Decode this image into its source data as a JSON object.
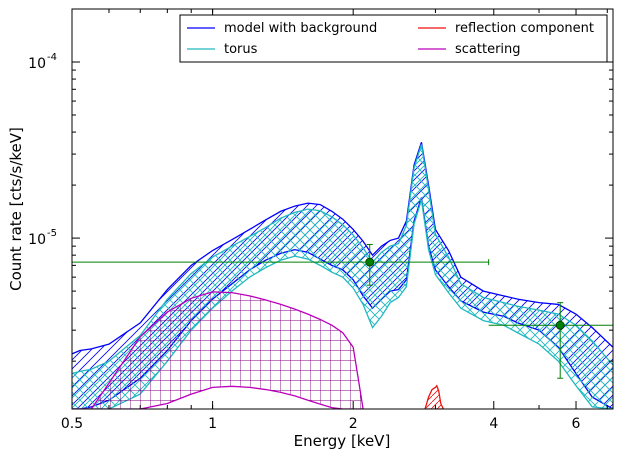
{
  "chart_data": {
    "type": "line",
    "xlabel": "Energy [keV]",
    "ylabel": "Count rate [cts/s/keV]",
    "x_scale": "log",
    "y_scale": "log",
    "xlim": [
      0.5,
      7.2
    ],
    "ylim": [
      1.07e-06,
      0.0002
    ],
    "x_ticks": [
      {
        "value": 0.5,
        "label": "0.5"
      },
      {
        "value": 1,
        "label": "1"
      },
      {
        "value": 2,
        "label": "2"
      },
      {
        "value": 4,
        "label": "4"
      },
      {
        "value": 6,
        "label": "6"
      }
    ],
    "y_ticks": [
      {
        "value": 1e-05,
        "label": "10",
        "exp": "-5"
      },
      {
        "value": 0.0001,
        "label": "10",
        "exp": "-4"
      }
    ],
    "legend_position": "top-right",
    "colors": {
      "model": "#0000ff",
      "torus": "#20b8c0",
      "reflection": "#ee1111",
      "scattering": "#bb00bb",
      "data": "#008000",
      "scattering_hatch": "#800080"
    },
    "series": [
      {
        "name": "model with background",
        "color": "#0000ff",
        "x": [
          0.5,
          0.52,
          0.55,
          0.6,
          0.7,
          0.8,
          0.9,
          1.0,
          1.1,
          1.2,
          1.3,
          1.4,
          1.5,
          1.6,
          1.7,
          1.8,
          1.9,
          2.0,
          2.1,
          2.2,
          2.3,
          2.4,
          2.5,
          2.6,
          2.7,
          2.8,
          2.9,
          3.0,
          3.2,
          3.4,
          3.8,
          4.2,
          4.5,
          5.0,
          5.5,
          6.0,
          6.5,
          7.2
        ],
        "lower": [
          1.07e-06,
          1.07e-06,
          1.1e-06,
          1.2e-06,
          1.6e-06,
          2.3e-06,
          3.4e-06,
          4.5e-06,
          5.5e-06,
          6.6e-06,
          7.5e-06,
          8.2e-06,
          8.6e-06,
          8.3e-06,
          7.6e-06,
          7e-06,
          6.6e-06,
          5.8e-06,
          4.7e-06,
          4e-06,
          4.5e-06,
          5e-06,
          5.1e-06,
          5.8e-06,
          1.25e-05,
          1.7e-05,
          9e-06,
          6.6e-06,
          5.3e-06,
          4.4e-06,
          3.8e-06,
          3.6e-06,
          3.3e-06,
          3e-06,
          2.4e-06,
          1.7e-06,
          1.25e-06,
          1.07e-06
        ],
        "upper": [
          2.2e-06,
          2.3e-06,
          2.35e-06,
          2.5e-06,
          3.3e-06,
          5.1e-06,
          7e-06,
          8.5e-06,
          9.8e-06,
          1.12e-05,
          1.27e-05,
          1.42e-05,
          1.52e-05,
          1.58e-05,
          1.55e-05,
          1.42e-05,
          1.28e-05,
          1.12e-05,
          9.6e-06,
          8e-06,
          9e-06,
          9.7e-06,
          1e-05,
          1.25e-05,
          2.6e-05,
          3.5e-05,
          2e-05,
          1.12e-05,
          8.5e-06,
          6e-06,
          5e-06,
          4.7e-06,
          4.5e-06,
          4.3e-06,
          4.2e-06,
          3.7e-06,
          3.1e-06,
          2.4e-06
        ]
      },
      {
        "name": "torus",
        "color": "#20b8c0",
        "x": [
          0.5,
          0.52,
          0.55,
          0.6,
          0.7,
          0.8,
          0.9,
          1.0,
          1.1,
          1.2,
          1.3,
          1.4,
          1.5,
          1.6,
          1.7,
          1.8,
          1.9,
          2.0,
          2.1,
          2.2,
          2.3,
          2.4,
          2.5,
          2.6,
          2.7,
          2.8,
          2.9,
          3.0,
          3.2,
          3.4,
          3.8,
          4.2,
          4.5,
          5.0,
          5.5,
          6.0,
          6.5,
          7.2
        ],
        "lower": [
          1.07e-06,
          1.07e-06,
          1.07e-06,
          1.07e-06,
          1.3e-06,
          2e-06,
          3e-06,
          4e-06,
          5e-06,
          6e-06,
          6.8e-06,
          7.5e-06,
          7.9e-06,
          7.6e-06,
          7e-06,
          6.4e-06,
          6e-06,
          5.2e-06,
          4.2e-06,
          3.1e-06,
          3.6e-06,
          4.3e-06,
          4.6e-06,
          5.3e-06,
          1.2e-05,
          1.65e-05,
          8.6e-06,
          6.2e-06,
          4.9e-06,
          4e-06,
          3.4e-06,
          3.2e-06,
          2.9e-06,
          2.5e-06,
          2e-06,
          1.45e-06,
          1.1e-06,
          1.07e-06
        ],
        "upper": [
          1.7e-06,
          1.75e-06,
          1.8e-06,
          2e-06,
          2.8e-06,
          4.5e-06,
          6.3e-06,
          7.8e-06,
          9e-06,
          1.02e-05,
          1.15e-05,
          1.3e-05,
          1.4e-05,
          1.46e-05,
          1.43e-05,
          1.32e-05,
          1.19e-05,
          1.04e-05,
          8.8e-06,
          7.3e-06,
          8.3e-06,
          9e-06,
          9.3e-06,
          1.18e-05,
          2.5e-05,
          3.4e-05,
          1.9e-05,
          1.05e-05,
          7.8e-06,
          5.5e-06,
          4.6e-06,
          4.3e-06,
          4.1e-06,
          3.9e-06,
          3.7e-06,
          3.2e-06,
          2.6e-06,
          1.9e-06
        ]
      },
      {
        "name": "reflection component",
        "color": "#ee1111",
        "x": [
          2.85,
          2.9,
          2.95,
          3.0,
          3.02,
          3.05,
          3.08,
          3.12
        ],
        "lower": [
          1.07e-06,
          1.07e-06,
          1.07e-06,
          1.07e-06,
          1.07e-06,
          1.07e-06,
          1.07e-06,
          1.07e-06
        ],
        "upper": [
          1.07e-06,
          1.25e-06,
          1.38e-06,
          1.42e-06,
          1.45e-06,
          1.35e-06,
          1.15e-06,
          1.07e-06
        ]
      },
      {
        "name": "scattering",
        "color": "#bb00bb",
        "x": [
          0.5,
          0.55,
          0.6,
          0.7,
          0.8,
          0.9,
          1.0,
          1.1,
          1.2,
          1.3,
          1.4,
          1.5,
          1.6,
          1.7,
          1.8,
          1.9,
          2.0,
          2.05,
          2.1
        ],
        "lower": [
          1.07e-06,
          1.07e-06,
          1.07e-06,
          1.07e-06,
          1.15e-06,
          1.3e-06,
          1.42e-06,
          1.44e-06,
          1.42e-06,
          1.38e-06,
          1.33e-06,
          1.27e-06,
          1.2e-06,
          1.14e-06,
          1.09e-06,
          1.07e-06,
          1.07e-06,
          1.07e-06,
          1.07e-06
        ],
        "upper": [
          1.07e-06,
          1.07e-06,
          1.5e-06,
          2.75e-06,
          3.8e-06,
          4.55e-06,
          4.95e-06,
          4.9e-06,
          4.7e-06,
          4.45e-06,
          4.2e-06,
          3.95e-06,
          3.7e-06,
          3.45e-06,
          3.2e-06,
          2.9e-06,
          2.4e-06,
          1.6e-06,
          1.07e-06
        ]
      }
    ],
    "data_points": [
      {
        "x": 2.17,
        "y": 7.3e-06,
        "xerr": [
          0.5,
          3.9
        ],
        "yerr": [
          5.4e-06,
          9.2e-06
        ]
      },
      {
        "x": 5.55,
        "y": 3.2e-06,
        "xerr": [
          3.9,
          7.2
        ],
        "yerr": [
          1.6e-06,
          4.3e-06
        ]
      }
    ]
  }
}
